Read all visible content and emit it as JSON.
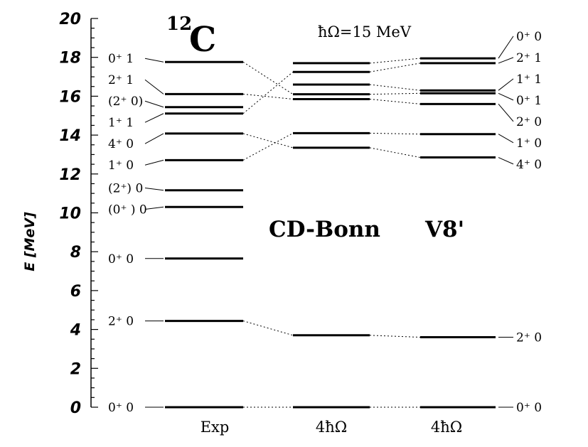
{
  "chart_data": {
    "type": "level-scheme",
    "title_mass": "12",
    "title_element": "C",
    "subtitle": "ħΩ=15 MeV",
    "ylabel": "E [MeV]",
    "ylim": [
      0,
      20
    ],
    "yticks": [
      "0",
      "2",
      "4",
      "6",
      "8",
      "10",
      "12",
      "14",
      "16",
      "18",
      "20"
    ],
    "model_labels": [
      "CD-Bonn",
      "V8'"
    ],
    "columns": [
      {
        "label": "Exp",
        "levels": [
          {
            "e": 0.0,
            "label": "0⁺ 0"
          },
          {
            "e": 4.44,
            "label": "2⁺ 0"
          },
          {
            "e": 7.65,
            "label": "0⁺ 0"
          },
          {
            "e": 10.3,
            "label": "(0⁺ ) 0"
          },
          {
            "e": 11.16,
            "label": "(2⁺) 0"
          },
          {
            "e": 12.71,
            "label": "1⁺ 0"
          },
          {
            "e": 14.08,
            "label": "4⁺ 0"
          },
          {
            "e": 15.11,
            "label": "1⁺ 1"
          },
          {
            "e": 15.44,
            "label": "(2⁺ 0)"
          },
          {
            "e": 16.11,
            "label": "2⁺ 1"
          },
          {
            "e": 17.76,
            "label": "0⁺ 1"
          }
        ]
      },
      {
        "label": "4ħΩ",
        "levels": [
          {
            "e": 0.0
          },
          {
            "e": 3.7
          },
          {
            "e": 13.35
          },
          {
            "e": 14.1
          },
          {
            "e": 15.85
          },
          {
            "e": 16.1
          },
          {
            "e": 16.6
          },
          {
            "e": 17.25
          },
          {
            "e": 17.7
          }
        ]
      },
      {
        "label": "4ħΩ",
        "levels": [
          {
            "e": 0.0,
            "label": "0⁺ 0"
          },
          {
            "e": 3.6,
            "label": "2⁺ 0"
          },
          {
            "e": 12.85,
            "label": "4⁺ 0"
          },
          {
            "e": 14.05,
            "label": "1⁺ 0"
          },
          {
            "e": 15.6,
            "label": "2⁺ 0"
          },
          {
            "e": 16.15,
            "label": "0⁺ 1"
          },
          {
            "e": 16.3,
            "label": "1⁺ 1"
          },
          {
            "e": 17.7,
            "label": "2⁺ 1"
          },
          {
            "e": 17.95,
            "label": "0⁺ 0"
          }
        ]
      }
    ],
    "correspondences": [
      {
        "between": [
          0,
          1
        ],
        "e": [
          0.0,
          0.0
        ]
      },
      {
        "between": [
          0,
          1
        ],
        "e": [
          4.44,
          3.7
        ]
      },
      {
        "between": [
          0,
          1
        ],
        "e": [
          12.71,
          14.1
        ]
      },
      {
        "between": [
          0,
          1
        ],
        "e": [
          14.08,
          13.35
        ]
      },
      {
        "between": [
          0,
          1
        ],
        "e": [
          15.11,
          17.25
        ]
      },
      {
        "between": [
          0,
          1
        ],
        "e": [
          16.11,
          15.85
        ]
      },
      {
        "between": [
          0,
          1
        ],
        "e": [
          17.76,
          16.1
        ]
      },
      {
        "between": [
          1,
          2
        ],
        "e": [
          0.0,
          0.0
        ]
      },
      {
        "between": [
          1,
          2
        ],
        "e": [
          3.7,
          3.6
        ]
      },
      {
        "between": [
          1,
          2
        ],
        "e": [
          13.35,
          12.85
        ]
      },
      {
        "between": [
          1,
          2
        ],
        "e": [
          14.1,
          14.05
        ]
      },
      {
        "between": [
          1,
          2
        ],
        "e": [
          15.85,
          15.6
        ]
      },
      {
        "between": [
          1,
          2
        ],
        "e": [
          16.1,
          16.15
        ]
      },
      {
        "between": [
          1,
          2
        ],
        "e": [
          16.6,
          16.3
        ]
      },
      {
        "between": [
          1,
          2
        ],
        "e": [
          17.25,
          17.7
        ]
      },
      {
        "between": [
          1,
          2
        ],
        "e": [
          17.7,
          17.95
        ]
      }
    ]
  }
}
